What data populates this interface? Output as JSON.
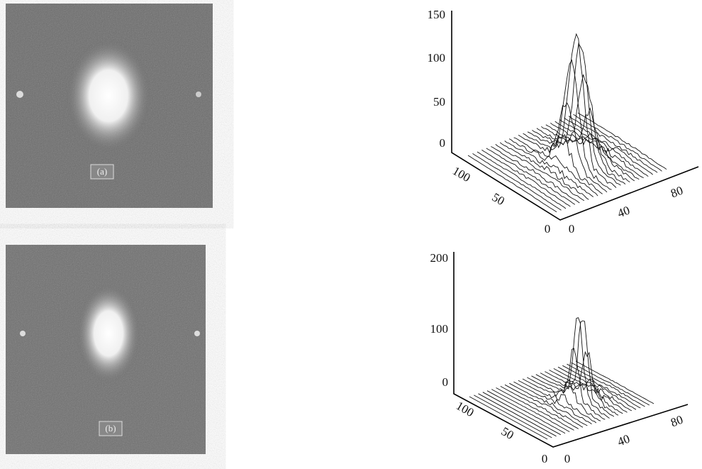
{
  "panels": [
    {
      "label": "(a)",
      "plot": {
        "zticks": [
          "150",
          "100",
          "50",
          "0"
        ],
        "yticks": [
          "100",
          "50",
          "0"
        ],
        "xticks": [
          "0",
          "40",
          "80"
        ]
      }
    },
    {
      "label": "(b)",
      "plot": {
        "zticks": [
          "200",
          "100",
          "0"
        ],
        "yticks": [
          "100",
          "50",
          "0"
        ],
        "xticks": [
          "0",
          "40",
          "80"
        ]
      }
    }
  ]
}
